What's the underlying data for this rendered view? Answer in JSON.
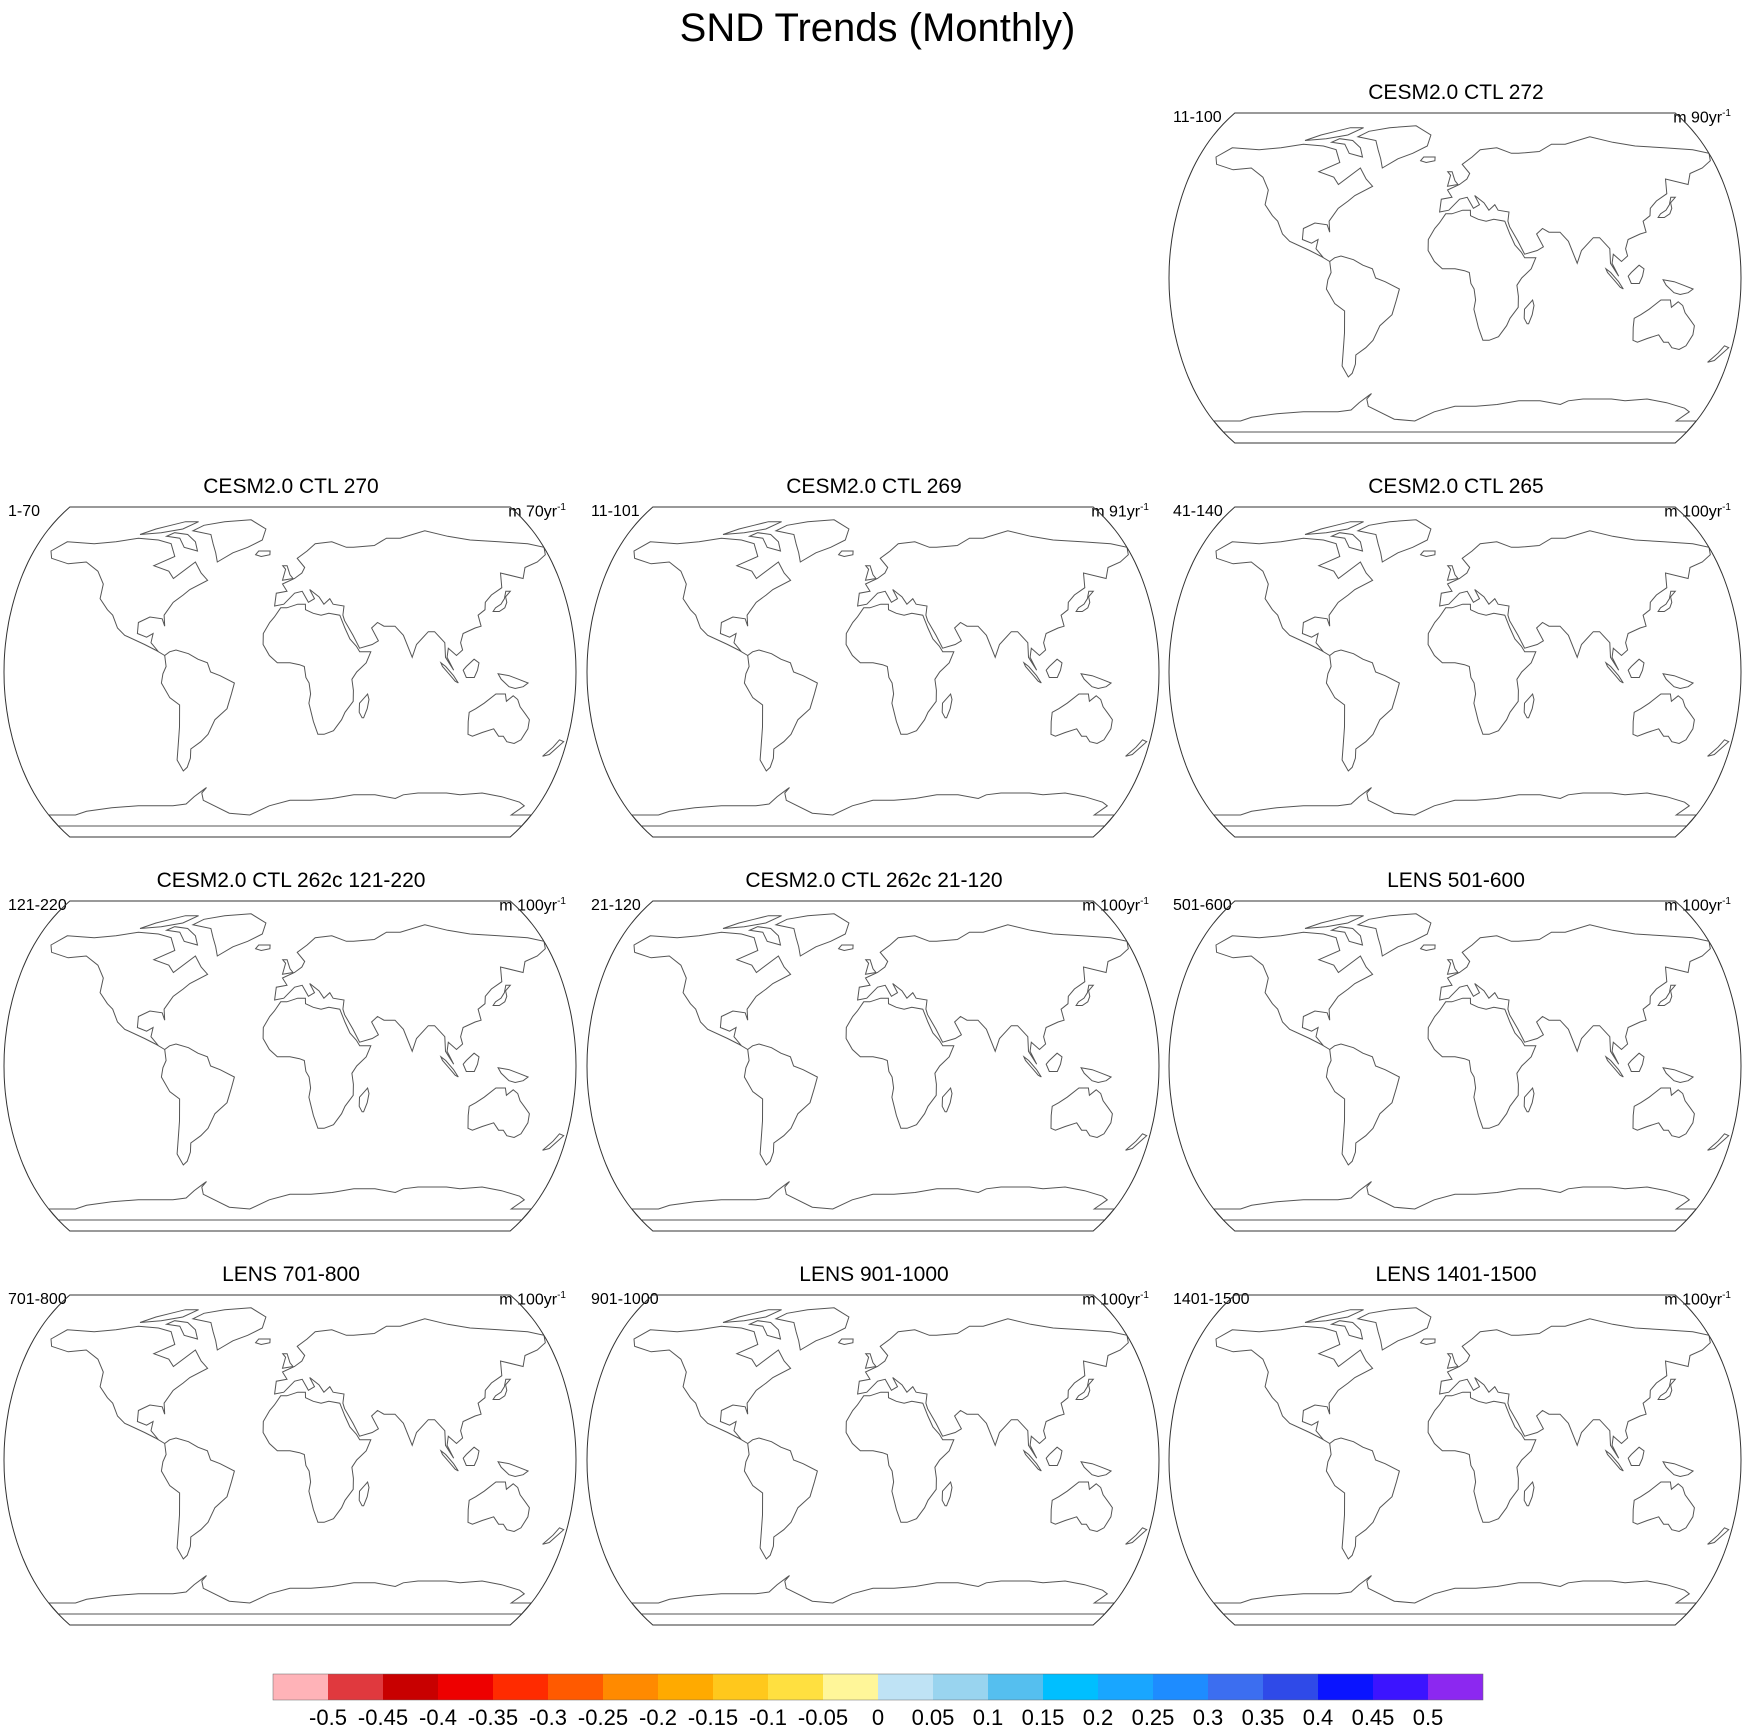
{
  "title": "SND Trends (Monthly)",
  "panels": [
    {
      "title": "CESM2.0 CTL 272",
      "years": "11-100",
      "units_prefix": "m 90yr",
      "units_exp": "-1",
      "seed": 3,
      "strength": 0.9
    },
    {
      "title": "CESM2.0 CTL 270",
      "years": "1-70",
      "units_prefix": "m 70yr",
      "units_exp": "-1",
      "seed": 7,
      "strength": 1.0
    },
    {
      "title": "CESM2.0 CTL 269",
      "years": "11-101",
      "units_prefix": "m 91yr",
      "units_exp": "-1",
      "seed": 11,
      "strength": 0.9
    },
    {
      "title": "CESM2.0 CTL 265",
      "years": "41-140",
      "units_prefix": "m 100yr",
      "units_exp": "-1",
      "seed": 17,
      "strength": 0.9
    },
    {
      "title": "CESM2.0 CTL 262c 121-220",
      "years": "121-220",
      "units_prefix": "m 100yr",
      "units_exp": "-1",
      "seed": 23,
      "strength": 1.0
    },
    {
      "title": "CESM2.0 CTL 262c 21-120",
      "years": "21-120",
      "units_prefix": "m 100yr",
      "units_exp": "-1",
      "seed": 29,
      "strength": 1.1
    },
    {
      "title": "LENS 501-600",
      "years": "501-600",
      "units_prefix": "m 100yr",
      "units_exp": "-1",
      "seed": 31,
      "strength": 0.4
    },
    {
      "title": "LENS 701-800",
      "years": "701-800",
      "units_prefix": "m 100yr",
      "units_exp": "-1",
      "seed": 37,
      "strength": 0.4
    },
    {
      "title": "LENS 901-1000",
      "years": "901-1000",
      "units_prefix": "m 100yr",
      "units_exp": "-1",
      "seed": 41,
      "strength": 0.4
    },
    {
      "title": "LENS 1401-1500",
      "years": "1401-1500",
      "units_prefix": "m 100yr",
      "units_exp": "-1",
      "seed": 43,
      "strength": 0.4
    }
  ],
  "colorbar": {
    "colors": [
      "#ffb3b8",
      "#e0393e",
      "#c80000",
      "#ee0000",
      "#ff2b00",
      "#ff5a00",
      "#ff8a00",
      "#ffaa00",
      "#ffc81c",
      "#ffe040",
      "#fff699",
      "#bfe3f5",
      "#99d4ef",
      "#55bfef",
      "#00bfff",
      "#19a6ff",
      "#1e8cff",
      "#3c6ef0",
      "#2f4ae8",
      "#0a14ff",
      "#3c14ff",
      "#8c28f0"
    ],
    "labels": [
      "-0.5",
      "-0.45",
      "-0.4",
      "-0.35",
      "-0.3",
      "-0.25",
      "-0.2",
      "-0.15",
      "-0.1",
      "-0.05",
      "0",
      "0.05",
      "0.1",
      "0.15",
      "0.2",
      "0.25",
      "0.3",
      "0.35",
      "0.4",
      "0.45",
      "0.5"
    ]
  },
  "chart_data": {
    "type": "heatmap",
    "title": "SND Trends (Monthly)",
    "projection": "Robinson (global)",
    "variable": "SND",
    "units": "m yr-1",
    "color_levels": [
      -0.5,
      -0.45,
      -0.4,
      -0.35,
      -0.3,
      -0.25,
      -0.2,
      -0.15,
      -0.1,
      -0.05,
      0,
      0.05,
      0.1,
      0.15,
      0.2,
      0.25,
      0.3,
      0.35,
      0.4,
      0.45,
      0.5
    ],
    "layout": "4 rows x 3 columns, top row first two panels empty"
  }
}
